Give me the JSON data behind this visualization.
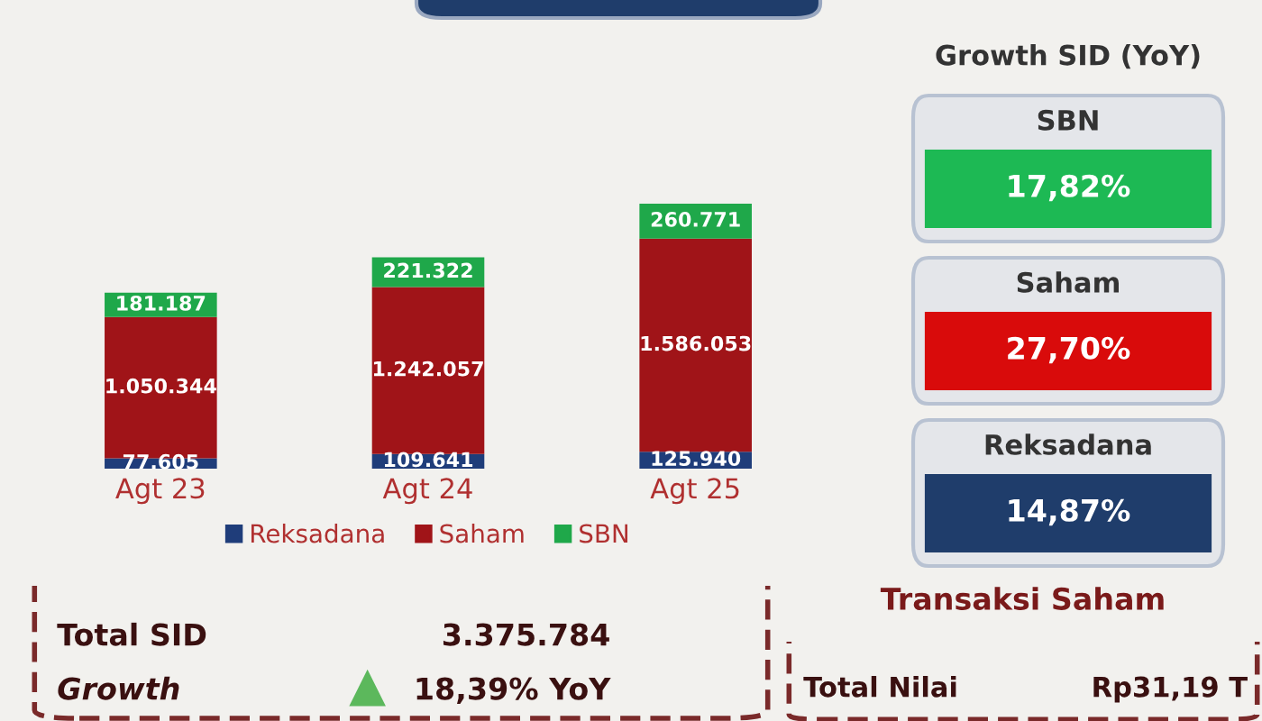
{
  "chart_data": [
    {
      "type": "bar",
      "stacked": true,
      "categories": [
        "Agt 23",
        "Agt 24",
        "Agt 25"
      ],
      "series": [
        {
          "name": "Reksadana",
          "color": "#1f3d7a",
          "values": [
            77605,
            109641,
            125940
          ],
          "value_labels": [
            "77.605",
            "109.641",
            "125.940"
          ]
        },
        {
          "name": "Saham",
          "color": "#a01418",
          "values": [
            1050344,
            1242057,
            1586053
          ],
          "value_labels": [
            "1.050.344",
            "1.242.057",
            "1.586.053"
          ]
        },
        {
          "name": "SBN",
          "color": "#1fa84a",
          "values": [
            181187,
            221322,
            260771
          ],
          "value_labels": [
            "181.187",
            "221.322",
            "260.771"
          ]
        }
      ],
      "legend": "bottom",
      "grid": false
    },
    {
      "type": "other",
      "title": "Growth SID (YoY)",
      "annotations": [
        "SBN",
        "17,82%",
        "Saham",
        "27,70%",
        "Reksadana",
        "14,87%"
      ]
    },
    {
      "type": "other",
      "annotations": [
        "Total SID",
        "3.375.784",
        "Growth",
        "18,39% YoY"
      ]
    },
    {
      "type": "other",
      "title": "Transaksi Saham",
      "annotations": [
        "Total Nilai",
        "Rp31,19 T"
      ]
    }
  ]
}
